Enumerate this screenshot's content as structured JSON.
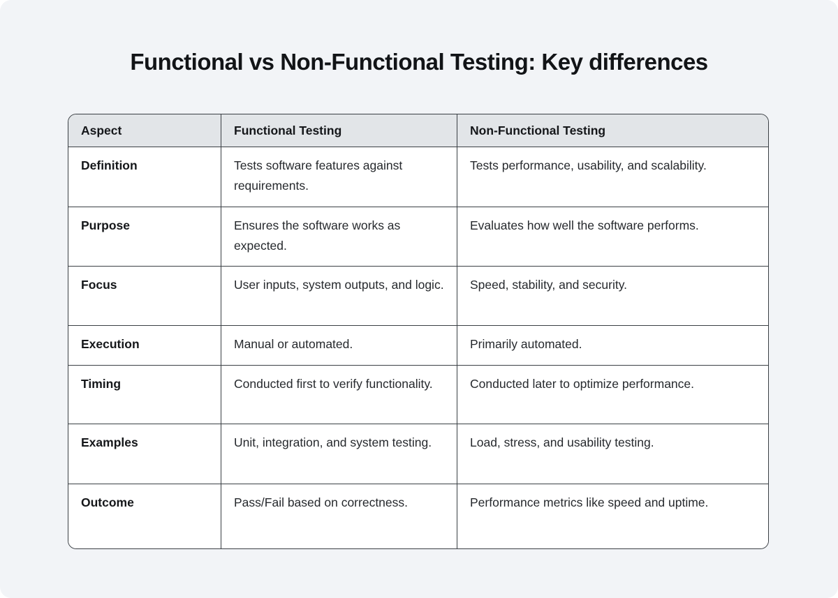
{
  "page": {
    "title": "Functional vs Non-Functional Testing: Key differences",
    "background_color": "#f2f4f7"
  },
  "table": {
    "colors": {
      "header_bg": "#e2e5e8",
      "body_bg": "#ffffff",
      "border": "#3a3f44",
      "heading_text": "#15171a",
      "body_text": "#26292d"
    },
    "headers": [
      "Aspect",
      "Functional Testing",
      "Non-Functional Testing"
    ],
    "rows": [
      {
        "aspect": "Definition",
        "functional": "Tests software features against requirements.",
        "non_functional": "Tests performance, usability, and scalability."
      },
      {
        "aspect": "Purpose",
        "functional": "Ensures the software works as expected.",
        "non_functional": "Evaluates how well the software performs."
      },
      {
        "aspect": "Focus",
        "functional": "User inputs, system outputs, and logic.",
        "non_functional": "Speed, stability, and security."
      },
      {
        "aspect": "Execution",
        "functional": "Manual or automated.",
        "non_functional": "Primarily automated."
      },
      {
        "aspect": "Timing",
        "functional": "Conducted first to verify functionality.",
        "non_functional": "Conducted later to optimize performance."
      },
      {
        "aspect": "Examples",
        "functional": "Unit, integration, and system testing.",
        "non_functional": "Load, stress, and usability testing."
      },
      {
        "aspect": "Outcome",
        "functional": "Pass/Fail based on correctness.",
        "non_functional": "Performance metrics like speed and uptime."
      }
    ]
  }
}
